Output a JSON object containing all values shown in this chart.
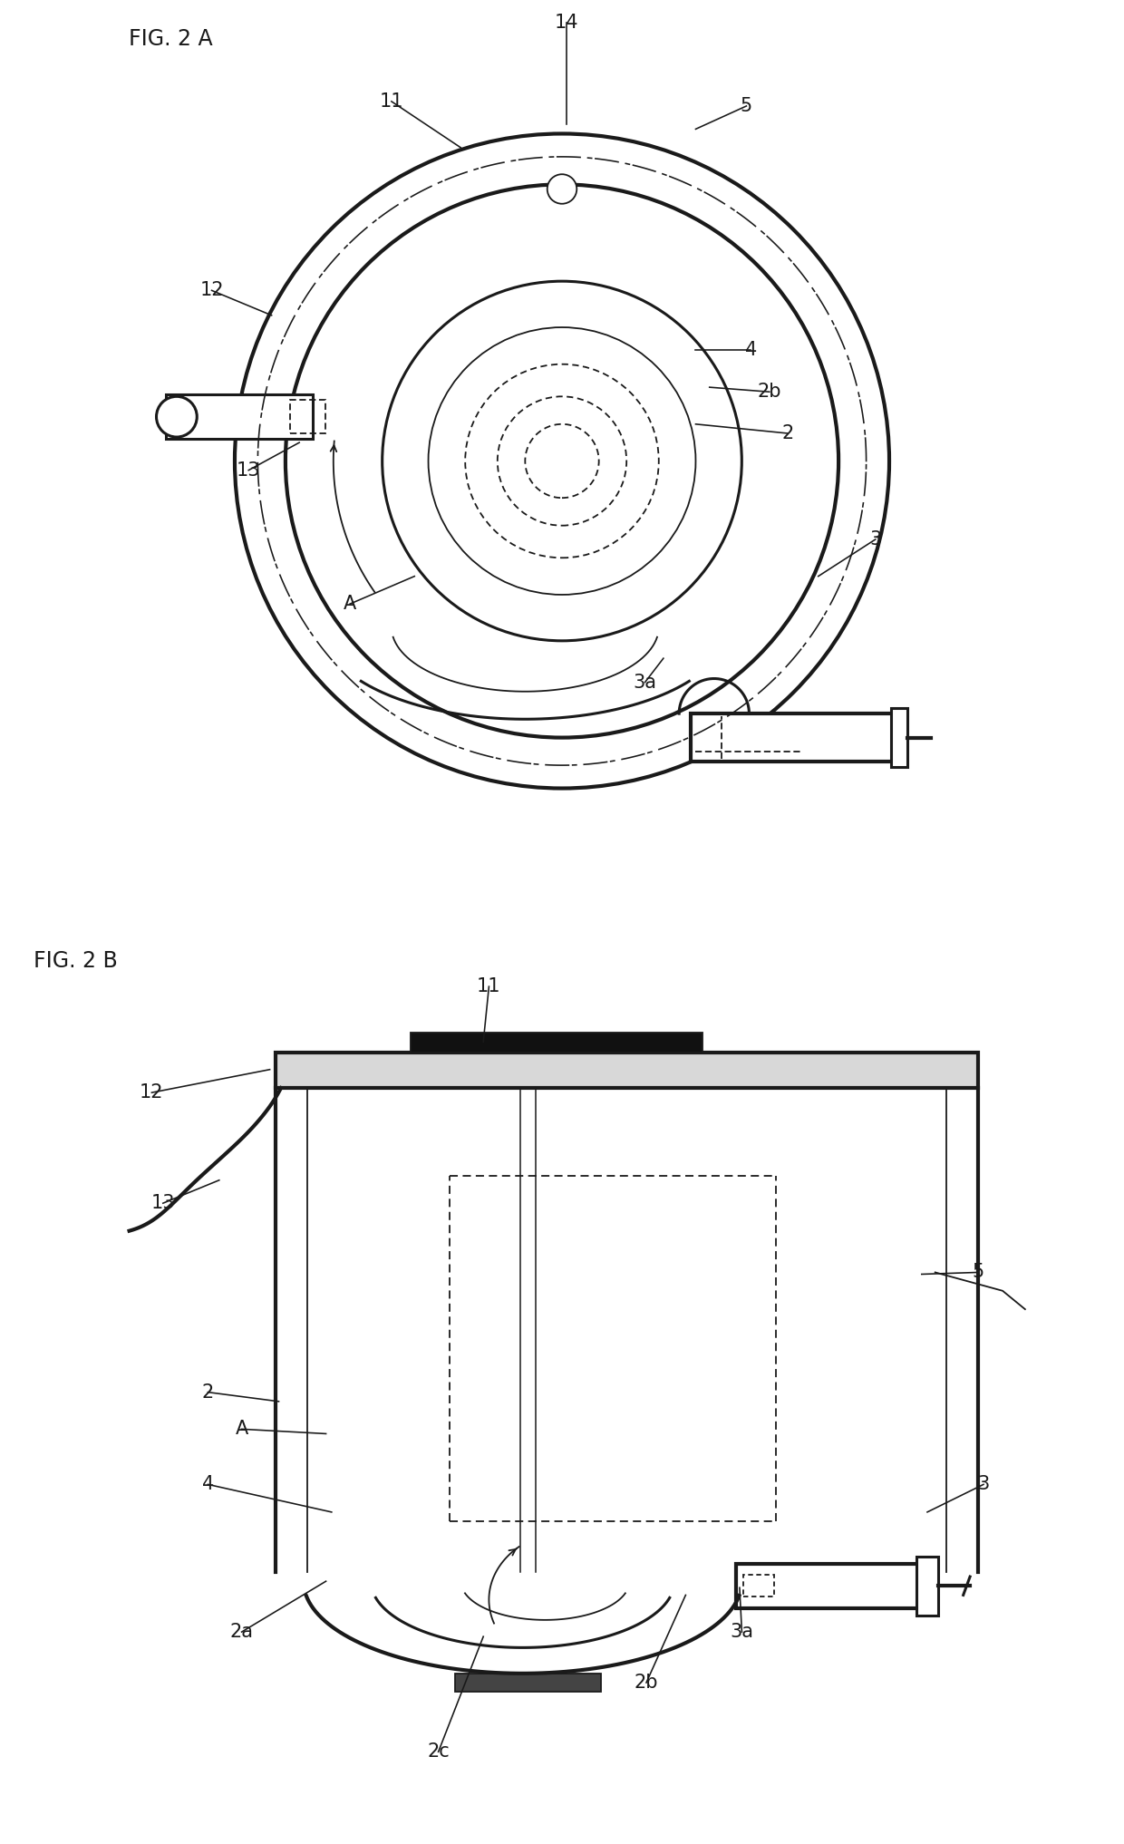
{
  "fig_label_a": "FIG. 2 A",
  "fig_label_b": "FIG. 2 B",
  "bg_color": "#ffffff",
  "line_color": "#1a1a1a",
  "lw": 2.2,
  "lw_thin": 1.3,
  "lw_thick": 3.0
}
